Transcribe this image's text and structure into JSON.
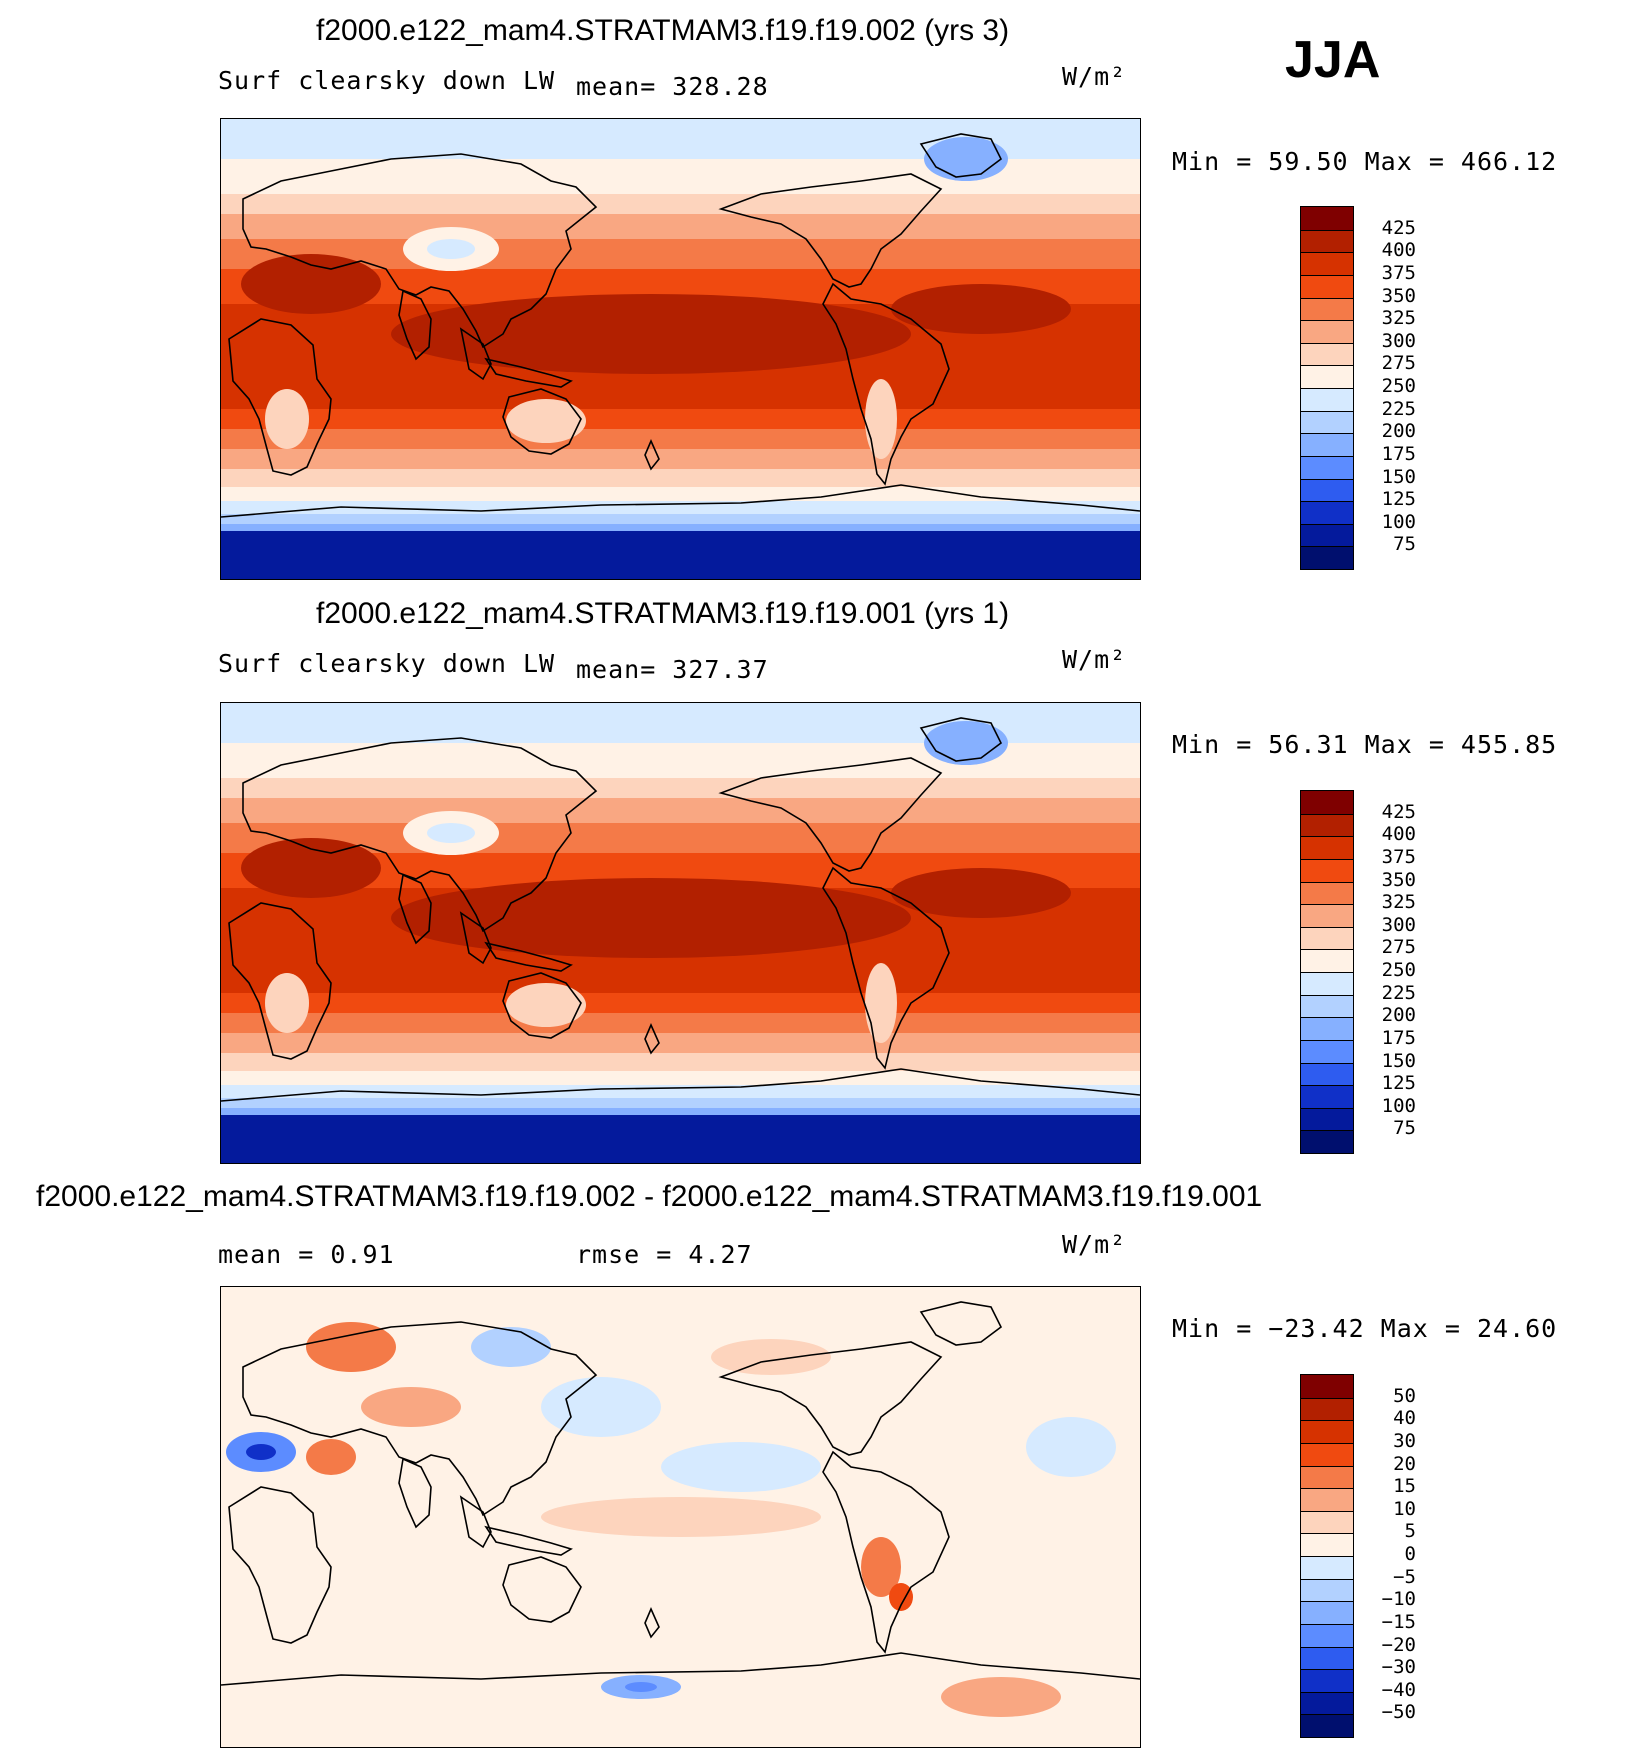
{
  "season": "JJA",
  "panels": [
    {
      "title": "f2000.e122_mam4.STRATMAM3.f19.f19.002 (yrs 3)",
      "left_label": "Surf clearsky down LW",
      "mid_label": "mean= 328.28",
      "units": "W/m²",
      "minmax": "Min =   59.50 Max = 466.12",
      "map_kind": "field"
    },
    {
      "title": "f2000.e122_mam4.STRATMAM3.f19.f19.001 (yrs 1)",
      "left_label": "Surf clearsky down LW",
      "mid_label": "mean= 327.37",
      "units": "W/m²",
      "minmax": "Min =   56.31 Max = 455.85",
      "map_kind": "field"
    },
    {
      "title": "f2000.e122_mam4.STRATMAM3.f19.f19.002 - f2000.e122_mam4.STRATMAM3.f19.f19.001",
      "left_label": "mean =     0.91",
      "mid_label": "rmse =     4.27",
      "units": "W/m²",
      "minmax": "Min = −23.42 Max =   24.60",
      "map_kind": "diff"
    }
  ],
  "colorbars": {
    "field": {
      "labels": [
        "425",
        "400",
        "375",
        "350",
        "325",
        "300",
        "275",
        "250",
        "225",
        "200",
        "175",
        "150",
        "125",
        "100",
        "75"
      ],
      "colors": [
        "#7f0000",
        "#b22000",
        "#d63200",
        "#f04a10",
        "#f47a48",
        "#f9a782",
        "#fdd4bd",
        "#fff2e6",
        "#d6eaff",
        "#b2d1ff",
        "#86b0ff",
        "#5c8cff",
        "#2e5cf0",
        "#1030c8",
        "#041a9c",
        "#000f6e"
      ]
    },
    "diff": {
      "labels": [
        "50",
        "40",
        "30",
        "20",
        "15",
        "10",
        "5",
        "0",
        "−5",
        "−10",
        "−15",
        "−20",
        "−30",
        "−40",
        "−50"
      ],
      "colors": [
        "#7f0000",
        "#b22000",
        "#d63200",
        "#f04a10",
        "#f47a48",
        "#f9a782",
        "#fdd4bd",
        "#fff2e6",
        "#d6eaff",
        "#b2d1ff",
        "#86b0ff",
        "#5c8cff",
        "#2e5cf0",
        "#1030c8",
        "#041a9c",
        "#000f6e"
      ]
    }
  }
}
